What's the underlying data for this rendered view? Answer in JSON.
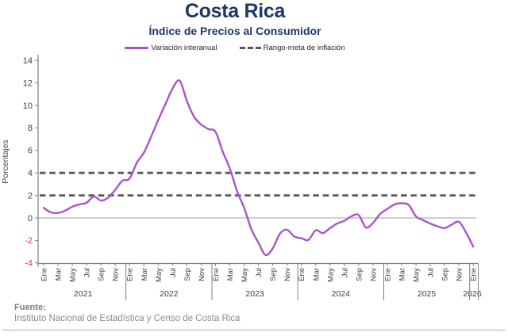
{
  "header": {
    "title": "Costa Rica",
    "subtitle": "Índice de Precios al Consumidor"
  },
  "legend": [
    {
      "label": "Variación interanual",
      "type": "solid-line",
      "color": "#A855C8"
    },
    {
      "label": "Rango-meta de inflación",
      "type": "dashed-line",
      "color": "#595959"
    }
  ],
  "chart_data": {
    "type": "line",
    "title": "Costa Rica",
    "subtitle": "Índice de Precios al Consumidor",
    "ylabel": "Porcentajes",
    "ylim": [
      -4,
      14
    ],
    "ytick_step": 2,
    "grid": "off",
    "legend_position": "top-center",
    "x_axis": {
      "tick_months": [
        "Ene",
        "Mar",
        "May",
        "Jul",
        "Sep",
        "Nov"
      ],
      "year_groups": [
        "2021",
        "2022",
        "2023",
        "2024",
        "2025"
      ],
      "final_tick_month": "Ene",
      "final_year": "2026",
      "start": "Ene 2021",
      "end": "Ene 2026"
    },
    "series": [
      {
        "name": "Variación interanual",
        "color": "#A855C8",
        "frequency": "monthly",
        "values": [
          0.9,
          0.5,
          0.45,
          0.65,
          1.0,
          1.2,
          1.35,
          1.9,
          1.55,
          1.8,
          2.5,
          3.3,
          3.5,
          4.9,
          5.8,
          7.2,
          8.7,
          10.1,
          11.5,
          12.2,
          10.4,
          9.0,
          8.3,
          7.9,
          7.65,
          5.9,
          4.4,
          2.4,
          0.9,
          -1.0,
          -2.2,
          -3.3,
          -2.7,
          -1.4,
          -1.05,
          -1.65,
          -1.8,
          -1.95,
          -1.1,
          -1.35,
          -0.9,
          -0.5,
          -0.25,
          0.15,
          0.25,
          -0.85,
          -0.45,
          0.35,
          0.8,
          1.2,
          1.3,
          1.15,
          0.15,
          -0.2,
          -0.5,
          -0.75,
          -0.9,
          -0.6,
          -0.35,
          -1.3,
          -2.55
        ]
      }
    ],
    "reference_lines": [
      {
        "name": "Rango-meta de inflación (límite superior)",
        "value": 4,
        "style": "dashed",
        "color": "#595959"
      },
      {
        "name": "Rango-meta de inflación (límite inferior)",
        "value": 2,
        "style": "dashed",
        "color": "#595959"
      }
    ]
  },
  "colors": {
    "title_navy": "#1F3864",
    "series_purple": "#A855C8",
    "target_dash_gray": "#595959",
    "axis_gray": "#808080",
    "zero_line_gray": "#BFBFBF",
    "tick_text": "#404040",
    "negative_tick_red": "#E03C31",
    "footer_gray": "#8C8C8C"
  },
  "footer": {
    "source_label": "Fuente:",
    "source_text": "Instituto Nacional de Estadística y Censo de Costa Rica"
  }
}
